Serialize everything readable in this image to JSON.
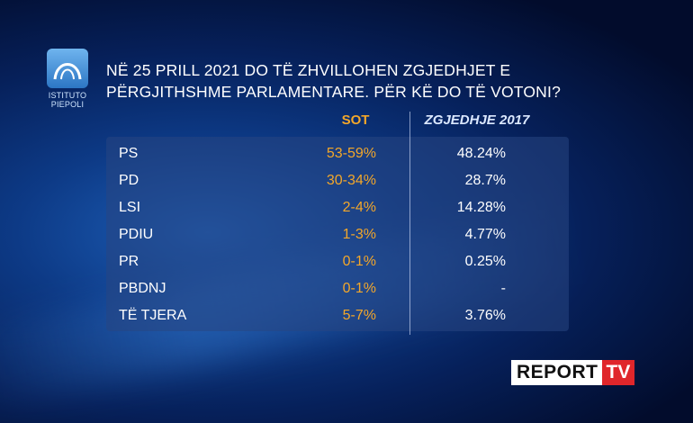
{
  "logo": {
    "line1": "ISTITUTO",
    "line2": "PIEPOLI"
  },
  "title": {
    "line1": "NË 25 PRILL 2021 DO TË ZHVILLOHEN ZGJEDHJET E",
    "line2": "PËRGJITHSHME PARLAMENTARE. PËR KË DO TË VOTONI?"
  },
  "table": {
    "headers": [
      "SOT",
      "ZGJEDHJE 2017"
    ],
    "rows": [
      [
        "PS",
        "53-59%",
        "48.24%"
      ],
      [
        "PD",
        "30-34%",
        "28.7%"
      ],
      [
        "LSI",
        "2-4%",
        "14.28%"
      ],
      [
        "PDIU",
        "1-3%",
        "4.77%"
      ],
      [
        "PR",
        "0-1%",
        "0.25%"
      ],
      [
        "PBDNJ",
        "0-1%",
        "-"
      ],
      [
        "TË TJERA",
        "5-7%",
        "3.76%"
      ]
    ]
  },
  "brand": {
    "name": "REPORT",
    "suffix": "TV"
  }
}
